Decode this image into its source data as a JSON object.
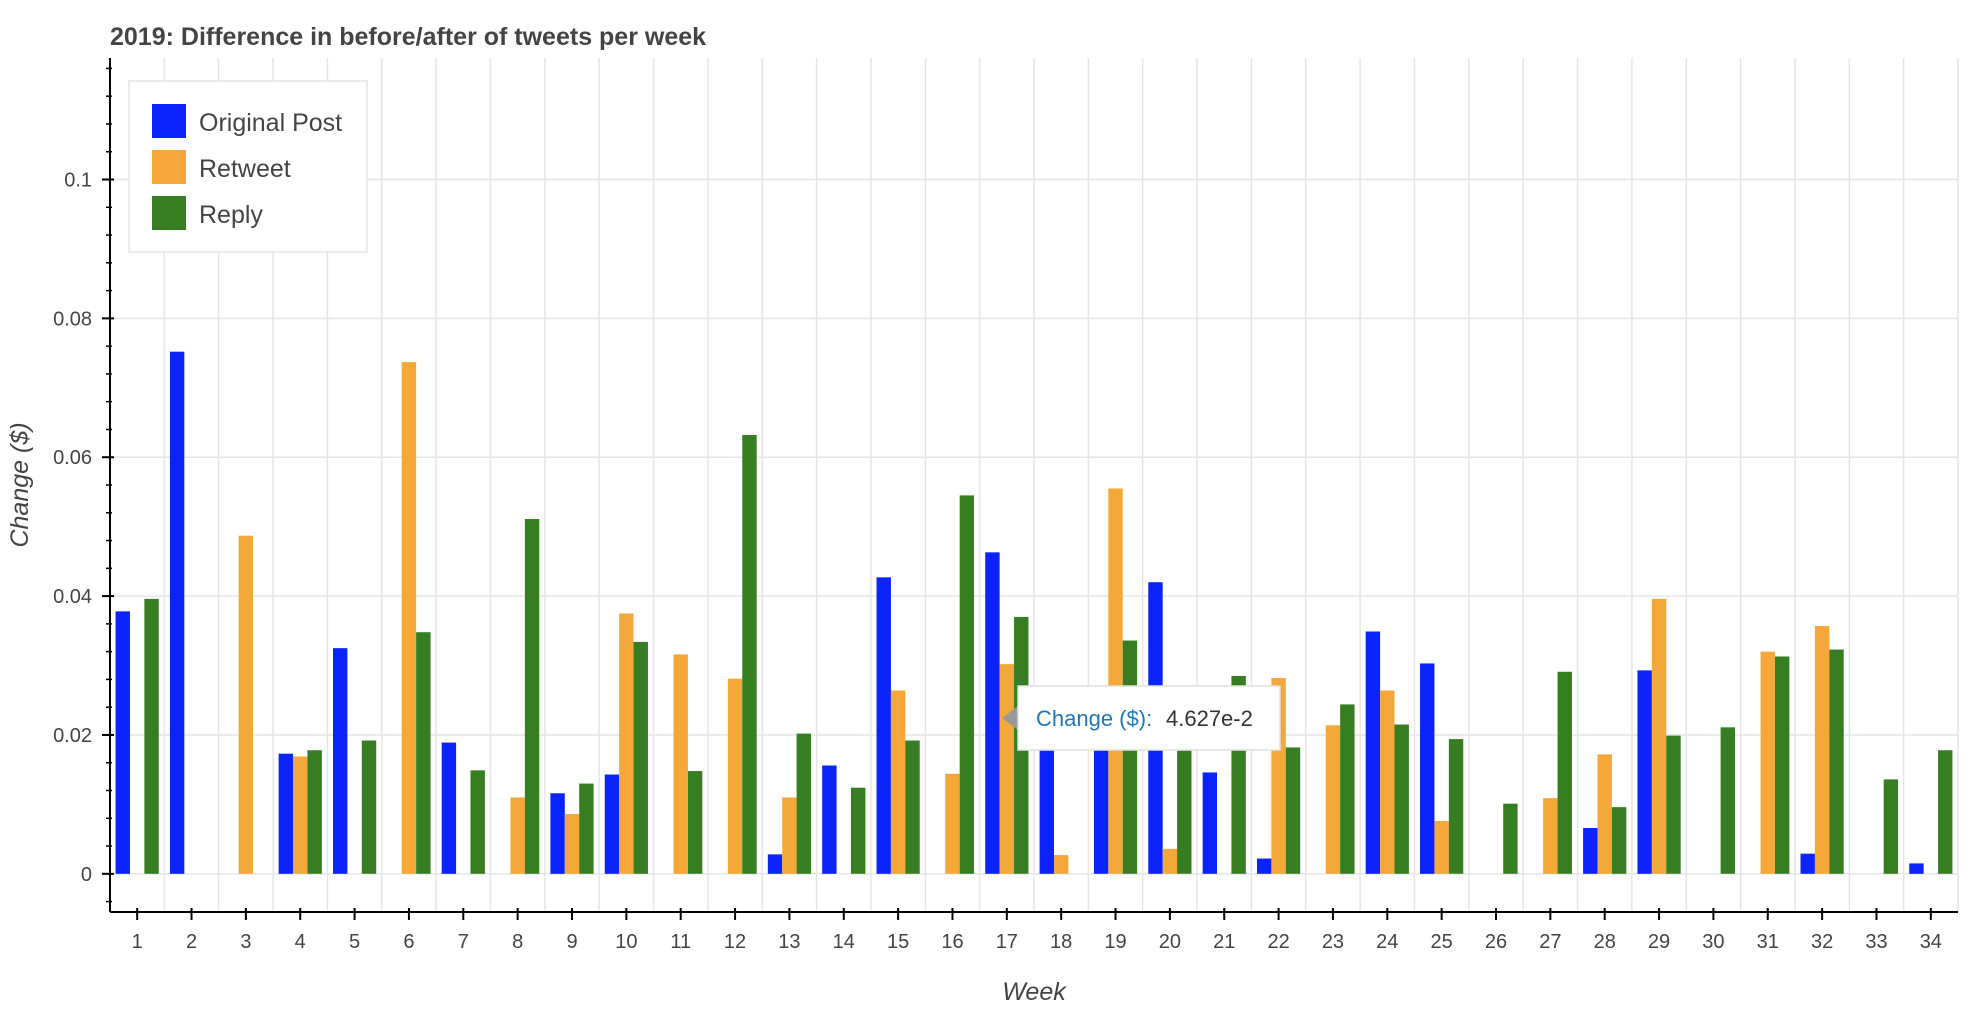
{
  "chart_data": {
    "type": "bar",
    "title": "2019: Difference in before/after of tweets per week",
    "xlabel": "Week",
    "ylabel": "Change ($)",
    "ylim": [
      -0.0055,
      0.1175
    ],
    "yticks": [
      0,
      0.02,
      0.04,
      0.06,
      0.08,
      0.1
    ],
    "ytick_labels": [
      "0",
      "0.02",
      "0.04",
      "0.06",
      "0.08",
      "0.1"
    ],
    "grid": true,
    "legend_position": "top-left",
    "categories": [
      "1",
      "2",
      "3",
      "4",
      "5",
      "6",
      "7",
      "8",
      "9",
      "10",
      "11",
      "12",
      "13",
      "14",
      "15",
      "16",
      "17",
      "18",
      "19",
      "20",
      "21",
      "22",
      "23",
      "24",
      "25",
      "26",
      "27",
      "28",
      "29",
      "30",
      "31",
      "32",
      "33",
      "34"
    ],
    "series": [
      {
        "name": "Original Post",
        "color": "#0b24fb",
        "values": [
          0.0378,
          0.0752,
          0,
          0.0173,
          0.0325,
          0,
          0.0189,
          0,
          0.0116,
          0.0143,
          0,
          0,
          0.0028,
          0.0156,
          0.0427,
          0,
          0.0463,
          0.0262,
          0.0255,
          0.042,
          0.0146,
          0.0022,
          0,
          0.0349,
          0.0303,
          0,
          0,
          0.0066,
          0.0293,
          0,
          0,
          0.0029,
          0,
          0.0015
        ]
      },
      {
        "name": "Retweet",
        "color": "#f4a83a",
        "values": [
          0,
          0,
          0.0487,
          0.0169,
          0,
          0.0737,
          0,
          0.011,
          0.0086,
          0.0375,
          0.0316,
          0.0281,
          0.011,
          0,
          0.0264,
          0.0144,
          0.0302,
          0.0027,
          0.0555,
          0.0036,
          0,
          0.0282,
          0.0214,
          0.0264,
          0.0076,
          0,
          0.0109,
          0.0172,
          0.0396,
          0,
          0.032,
          0.0357,
          0,
          0
        ]
      },
      {
        "name": "Reply",
        "color": "#377e22",
        "values": [
          0.0396,
          0,
          0,
          0.0178,
          0.0192,
          0.0348,
          0.0149,
          0.0511,
          0.013,
          0.0334,
          0.0148,
          0.0632,
          0.0202,
          0.0124,
          0.0192,
          0.0545,
          0.037,
          0,
          0.0336,
          0.0232,
          0.0285,
          0.0182,
          0.0244,
          0.0215,
          0.0194,
          0.0101,
          0.0291,
          0.0096,
          0.0199,
          0.0211,
          0.0313,
          0.0323,
          0.0136,
          0.0178
        ]
      }
    ],
    "tooltip": {
      "label": "Change ($):",
      "value": "4.627e-2",
      "category": "17"
    }
  }
}
